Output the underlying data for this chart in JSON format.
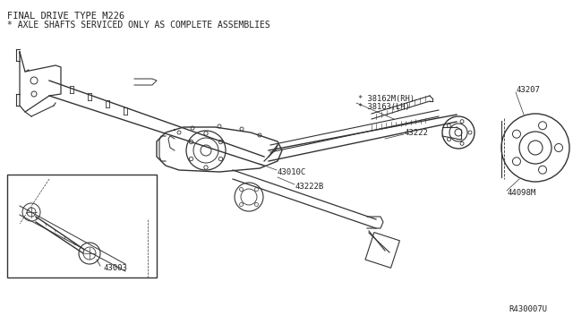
{
  "title_line1": "FINAL DRIVE TYPE M226",
  "title_line2": "* AXLE SHAFTS SERVICED ONLY AS COMPLETE ASSEMBLIES",
  "bg_color": "#ffffff",
  "line_color": "#333333",
  "label_color": "#222222",
  "ref_number": "R430007U",
  "parts": {
    "38162M_RH": "* 38162M(RH)",
    "38163_LH": "* 38163(LH)",
    "43222": "43222",
    "43207": "43207",
    "43010C": "43010C",
    "43222B": "43222B",
    "44098M": "44098M",
    "43003": "43003"
  }
}
